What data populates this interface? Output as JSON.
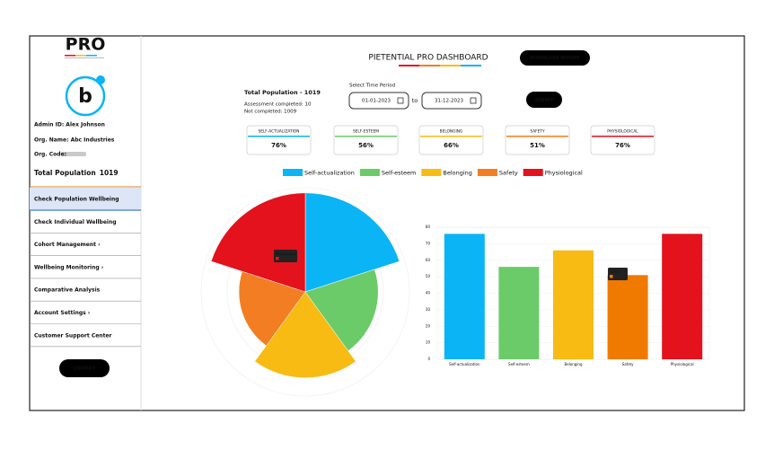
{
  "sidebar": {
    "logo": "PRO",
    "admin_id": "Admin ID: Alex Johnson",
    "org_name": "Org. Name: Abc Industries",
    "org_code": "Org. Code:",
    "total_population_label": "Total Population",
    "total_population_value": "1019",
    "menu": [
      "Check Population Wellbeing",
      "Check Individual Wellbeing",
      "Cohort Management ›",
      "Wellbeing Monitoring ›",
      "Comparative Analysis",
      "Account Settings ›",
      "Customer Support Center"
    ],
    "logout": "LOGOUT"
  },
  "header": {
    "title": "PIETENTIAL PRO DASHBOARD",
    "download": "DOWNLOAD REPORT"
  },
  "summary": {
    "total": "Total Population - 1019",
    "completed": "Assessment completed: 10",
    "not_completed": "Not completed: 1009"
  },
  "period": {
    "label": "Select Time Period",
    "from": "01-01-2023",
    "to_word": "to",
    "to": "31-12-2023",
    "submit": "SUBMIT"
  },
  "cards": [
    {
      "label": "SELF-ACTUALIZATION",
      "value": "76%"
    },
    {
      "label": "SELF-ESTEEM",
      "value": "56%"
    },
    {
      "label": "BELONGING",
      "value": "66%"
    },
    {
      "label": "SAFETY",
      "value": "51%"
    },
    {
      "label": "PHYSIOLOGICAL",
      "value": "76%"
    }
  ],
  "chart_data": [
    {
      "type": "polarArea",
      "categories": [
        "Self-actualization",
        "Self-esteem",
        "Belonging",
        "Safety",
        "Physiological"
      ],
      "values": [
        76,
        56,
        66,
        51,
        76
      ],
      "colors": [
        "#0ab4f5",
        "#6ccb69",
        "#f7bb14",
        "#f37d22",
        "#e3121c"
      ],
      "rlim": [
        0,
        80
      ]
    },
    {
      "type": "bar",
      "categories": [
        "Self-actualization",
        "Self-esteem",
        "Belonging",
        "Safety",
        "Physiological"
      ],
      "values": [
        76,
        56,
        66,
        51,
        76
      ],
      "colors": [
        "#0ab4f5",
        "#6ccb69",
        "#f7bb14",
        "#f07a00",
        "#e3121c"
      ],
      "ylim": [
        0,
        80
      ],
      "yticks": [
        0,
        10,
        20,
        30,
        40,
        50,
        60,
        70,
        80
      ],
      "grid": true
    }
  ]
}
